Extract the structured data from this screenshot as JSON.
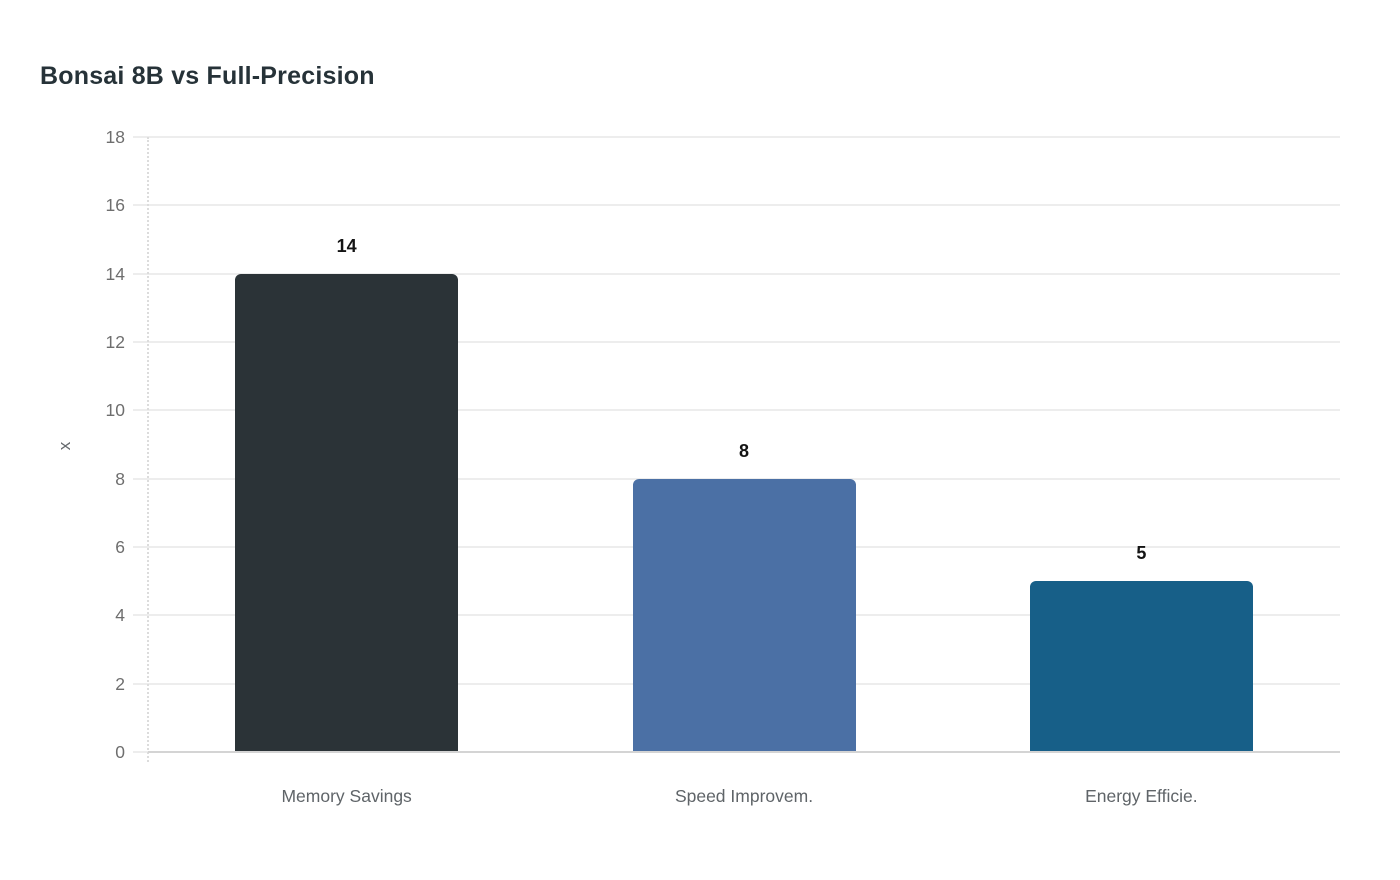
{
  "page": {
    "title": "Bonsai 8B vs Full-Precision"
  },
  "chart_data": {
    "type": "bar",
    "title": "Bonsai 8B vs Full-Precision",
    "categories": [
      "Memory Savings",
      "Speed Improvem.",
      "Energy Efficie."
    ],
    "values": [
      14,
      8,
      5
    ],
    "value_labels": [
      "14",
      "8",
      "5"
    ],
    "bar_colors": [
      "#2b3337",
      "#4b70a5",
      "#175f88"
    ],
    "xlabel": "",
    "ylabel": "x",
    "ylim": [
      0,
      18
    ],
    "yticks": [
      0,
      2,
      4,
      6,
      8,
      10,
      12,
      14,
      16,
      18
    ],
    "grid": true,
    "legend_position": "none",
    "colors": {
      "background": "#ffffff",
      "gridline": "#ededed",
      "axis_line": "#d4d4d4",
      "tick_text": "#6e6e6e",
      "category_text": "#5f6468",
      "title_text": "#263238",
      "value_text": "#141414"
    }
  }
}
